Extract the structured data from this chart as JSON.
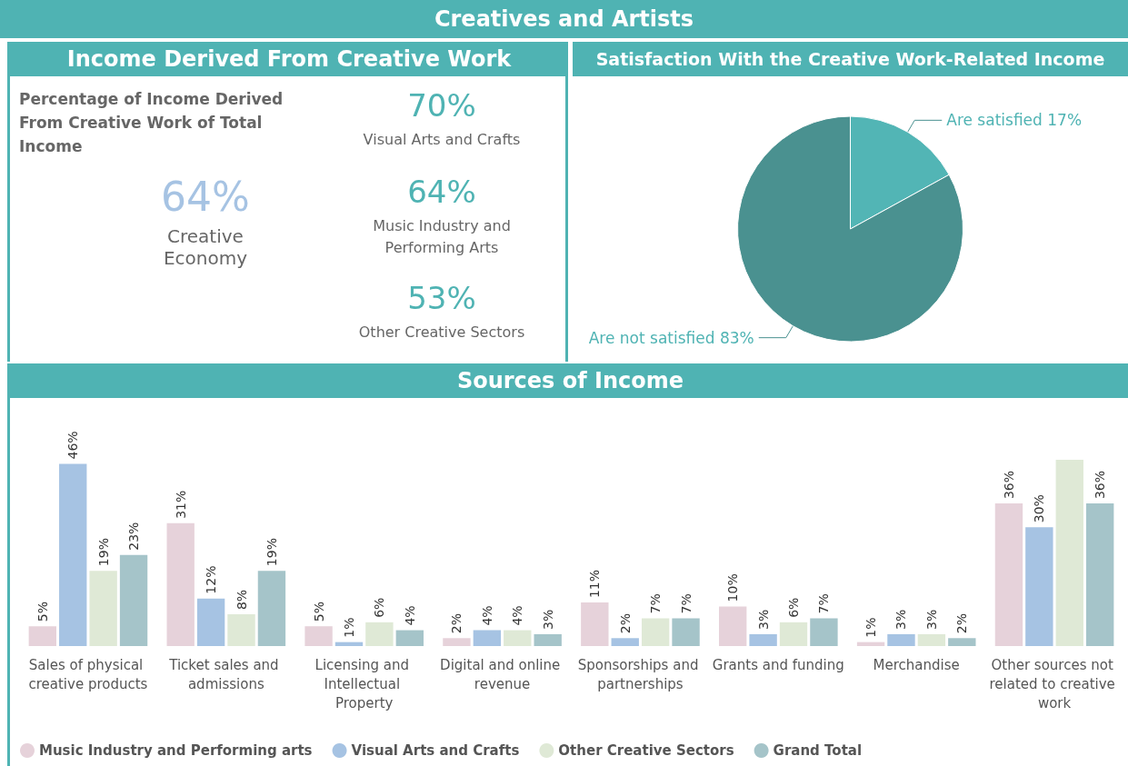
{
  "chart_data": [
    {
      "type": "other",
      "title": "Creatives and Artists",
      "subtitle": "Income Derived From Creative Work",
      "annotations": [
        "Percentage of Income Derived From Creative Work of Total Income",
        "64%",
        "Creative Economy",
        "70%",
        "Visual Arts and Crafts",
        "64%",
        "Music Industry and Performing Arts",
        "53%",
        "Other Creative Sectors"
      ]
    },
    {
      "type": "pie",
      "title": "Satisfaction With the Creative Work-Related Income",
      "categories": [
        "Are satisfied",
        "Are not satisfied"
      ],
      "values": [
        17,
        83
      ],
      "colors": [
        "#52b5b5",
        "#4a9190"
      ],
      "value_labels": [
        "17%",
        "83%"
      ]
    },
    {
      "type": "bar",
      "title": "Sources of Income",
      "categories": [
        "Sales of physical creative products",
        "Ticket sales and admissions",
        "Licensing and Intellectual Property",
        "Digital and online revenue",
        "Sponsorships and partnerships",
        "Grants and funding",
        "Merchandise",
        "Other sources not related to creative work"
      ],
      "legend": "bottom",
      "series": [
        {
          "name": "Music Industry and Performing arts",
          "color": "#e6d2da",
          "values": [
            5,
            31,
            5,
            2,
            11,
            10,
            1,
            36
          ],
          "value_labels": [
            "5%",
            "31%",
            "5%",
            "2%",
            "11%",
            "10%",
            "1%",
            "36%"
          ]
        },
        {
          "name": "Visual Arts and Crafts",
          "color": "#a6c3e3",
          "values": [
            46,
            12,
            1,
            4,
            2,
            3,
            3,
            30
          ],
          "value_labels": [
            "46%",
            "12%",
            "1%",
            "4%",
            "2%",
            "3%",
            "3%",
            "30%"
          ]
        },
        {
          "name": "Other Creative Sectors",
          "color": "#dfe9d6",
          "values": [
            19,
            8,
            6,
            4,
            7,
            6,
            3,
            47
          ],
          "value_labels": [
            "19%",
            "8%",
            "6%",
            "4%",
            "7%",
            "6%",
            "3%",
            null
          ]
        },
        {
          "name": "Grand Total",
          "color": "#a5c4c9",
          "values": [
            23,
            19,
            4,
            3,
            7,
            7,
            2,
            36
          ],
          "value_labels": [
            "23%",
            "19%",
            "4%",
            "3%",
            "7%",
            "7%",
            "2%",
            "36%"
          ]
        }
      ]
    }
  ]
}
